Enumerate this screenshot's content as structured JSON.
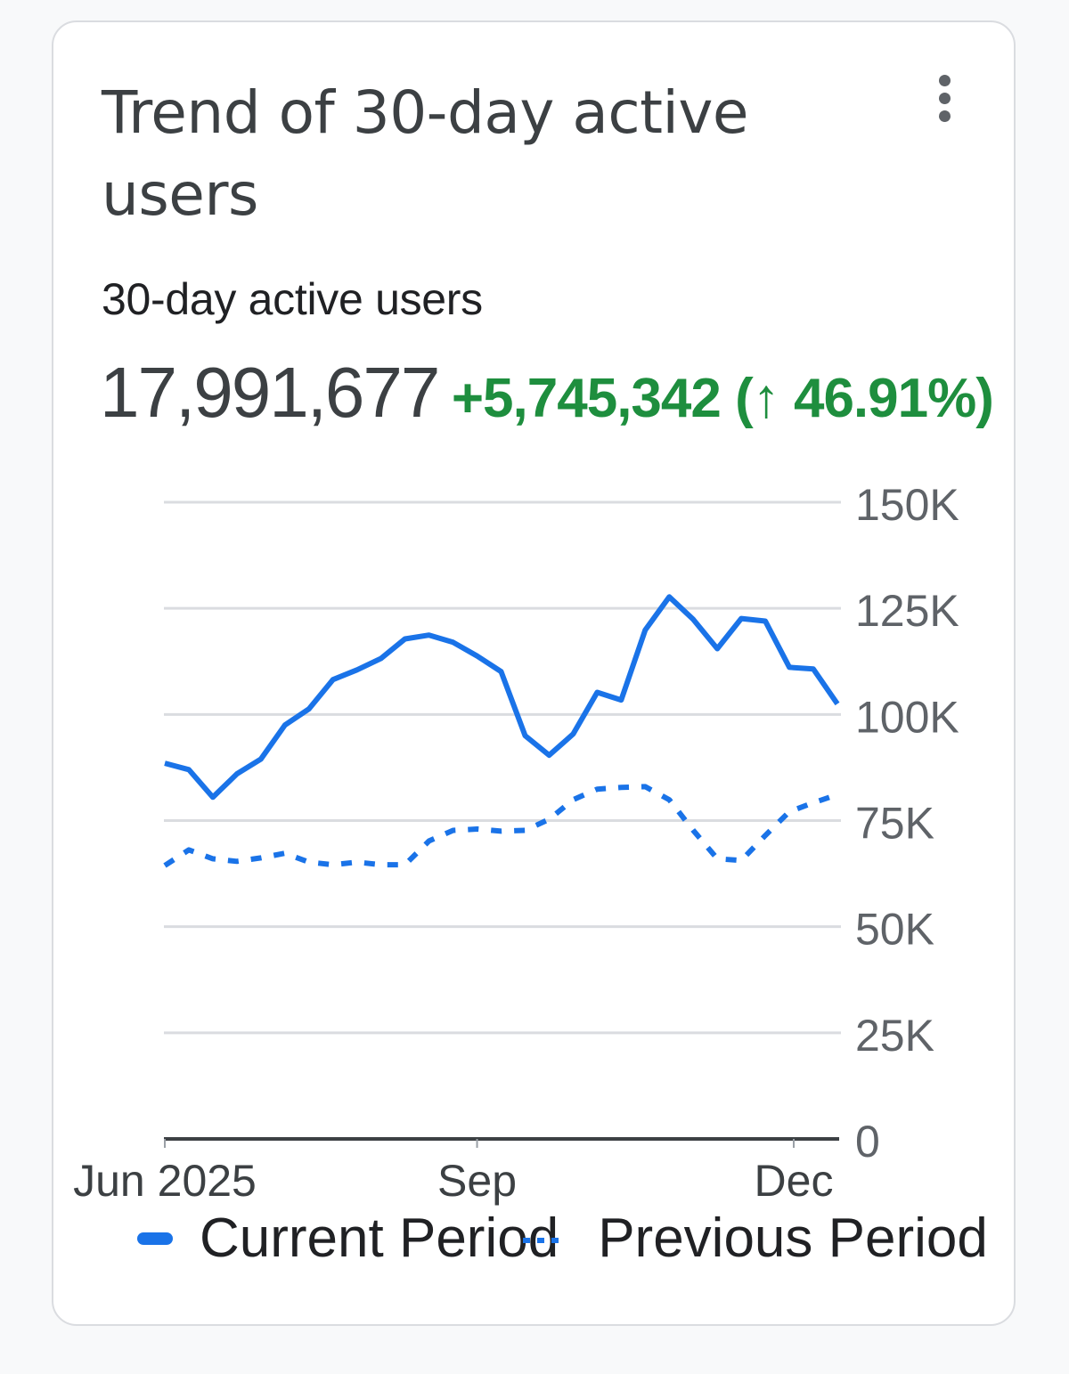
{
  "card": {
    "title": "Trend of 30-day active users",
    "menu_icon": "more-vert-icon"
  },
  "metric": {
    "label": "30-day active users",
    "value": "17,991,677",
    "delta": "+5,745,342 (↑ 46.91%)"
  },
  "colors": {
    "current": "#1a73e8",
    "previous": "#1a73e8",
    "positive": "#1e8e3e",
    "grid": "#dadce0",
    "axis": "#3c4043",
    "text": "#3c4043"
  },
  "legend": {
    "current": "Current Period",
    "previous": "Previous Period"
  },
  "chart_data": {
    "type": "line",
    "title": "Trend of 30-day active users",
    "xlabel": "",
    "ylabel": "30-day active users",
    "ylim": [
      0,
      150000
    ],
    "y_ticks": [
      "0",
      "25K",
      "50K",
      "75K",
      "100K",
      "125K",
      "150K"
    ],
    "y_tick_values": [
      0,
      25000,
      50000,
      75000,
      100000,
      125000,
      150000
    ],
    "y_axis_position": "right",
    "x_tick_labels": [
      "Jun 2025",
      "Sep",
      "Dec"
    ],
    "x_tick_indices": [
      0,
      13,
      26
    ],
    "grid": true,
    "legend_position": "bottom",
    "x": [
      0,
      1,
      2,
      3,
      4,
      5,
      6,
      7,
      8,
      9,
      10,
      11,
      12,
      13,
      14,
      15,
      16,
      17,
      18,
      19,
      20,
      21,
      22,
      23,
      24,
      25,
      26,
      27,
      28
    ],
    "series": [
      {
        "name": "Current Period",
        "style": "solid",
        "values": [
          88500,
          87000,
          80500,
          86000,
          89500,
          97500,
          101300,
          108200,
          110500,
          113200,
          117800,
          118700,
          117000,
          113800,
          110100,
          95000,
          90400,
          95400,
          105200,
          103400,
          119900,
          127700,
          122400,
          115500,
          122600,
          122000,
          111100,
          110700,
          102500
        ]
      },
      {
        "name": "Previous Period",
        "style": "dotted",
        "values": [
          64400,
          68100,
          66000,
          65400,
          66200,
          67300,
          65200,
          64600,
          65200,
          64600,
          64600,
          70200,
          72700,
          73000,
          72500,
          72700,
          75300,
          79900,
          82400,
          82800,
          83000,
          79900,
          72700,
          66000,
          65600,
          71500,
          77100,
          79200,
          81100
        ]
      }
    ]
  }
}
